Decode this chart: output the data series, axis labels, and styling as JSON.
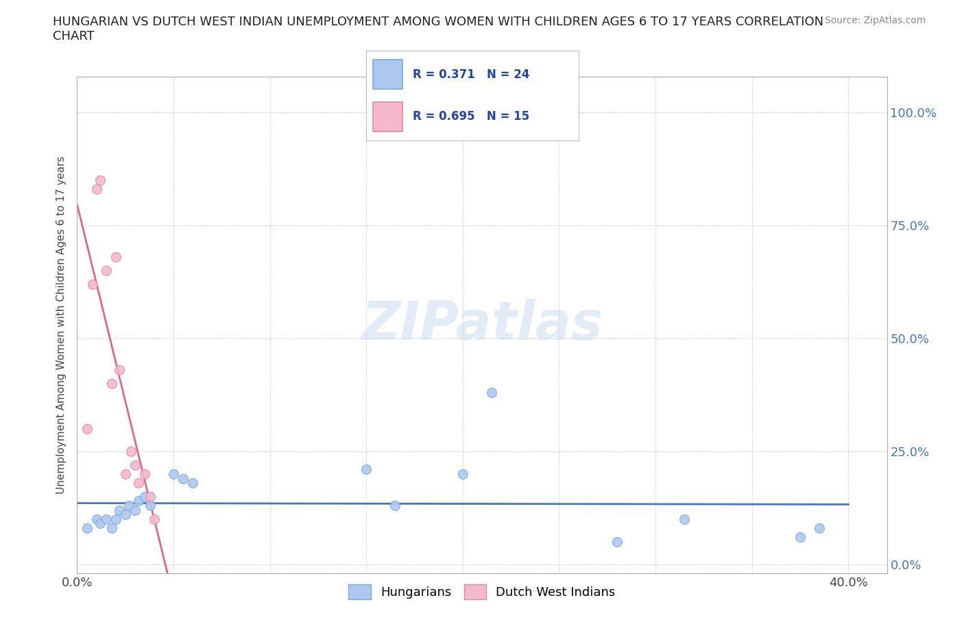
{
  "title": "HUNGARIAN VS DUTCH WEST INDIAN UNEMPLOYMENT AMONG WOMEN WITH CHILDREN AGES 6 TO 17 YEARS CORRELATION\nCHART",
  "source": "Source: ZipAtlas.com",
  "ylabel": "Unemployment Among Women with Children Ages 6 to 17 years",
  "xlim": [
    0.0,
    0.42
  ],
  "ylim": [
    -0.02,
    1.08
  ],
  "xticks": [
    0.0,
    0.05,
    0.1,
    0.15,
    0.2,
    0.25,
    0.3,
    0.35,
    0.4
  ],
  "xtick_labels": [
    "0.0%",
    "",
    "",
    "",
    "",
    "",
    "",
    "",
    "40.0%"
  ],
  "yticks": [
    0.0,
    0.25,
    0.5,
    0.75,
    1.0
  ],
  "ytick_labels": [
    "0.0%",
    "25.0%",
    "50.0%",
    "75.0%",
    "100.0%"
  ],
  "hungarian_x": [
    0.005,
    0.01,
    0.012,
    0.015,
    0.018,
    0.02,
    0.022,
    0.025,
    0.027,
    0.03,
    0.032,
    0.035,
    0.038,
    0.05,
    0.055,
    0.06,
    0.15,
    0.165,
    0.2,
    0.215,
    0.28,
    0.315,
    0.375,
    0.385
  ],
  "hungarian_y": [
    0.08,
    0.1,
    0.09,
    0.1,
    0.08,
    0.1,
    0.12,
    0.11,
    0.13,
    0.12,
    0.14,
    0.15,
    0.13,
    0.2,
    0.19,
    0.18,
    0.21,
    0.13,
    0.2,
    0.38,
    0.05,
    0.1,
    0.06,
    0.08
  ],
  "dutch_x": [
    0.005,
    0.008,
    0.01,
    0.012,
    0.015,
    0.018,
    0.02,
    0.022,
    0.025,
    0.028,
    0.03,
    0.032,
    0.035,
    0.038,
    0.04
  ],
  "dutch_y": [
    0.3,
    0.62,
    0.83,
    0.85,
    0.65,
    0.4,
    0.68,
    0.43,
    0.2,
    0.25,
    0.22,
    0.18,
    0.2,
    0.15,
    0.1
  ],
  "hungarian_color": "#adc8f0",
  "hungarian_edge": "#7aaad8",
  "dutch_color": "#f5b8cc",
  "dutch_edge": "#d88aaa",
  "hungarian_line_color": "#4477bb",
  "dutch_line_color": "#e06688",
  "hungarian_R": 0.371,
  "hungarian_N": 24,
  "dutch_R": 0.695,
  "dutch_N": 15,
  "legend_R_color": "#2244aa",
  "watermark_color": "#c8d8ee",
  "background_color": "#ffffff",
  "grid_color": "#cccccc"
}
